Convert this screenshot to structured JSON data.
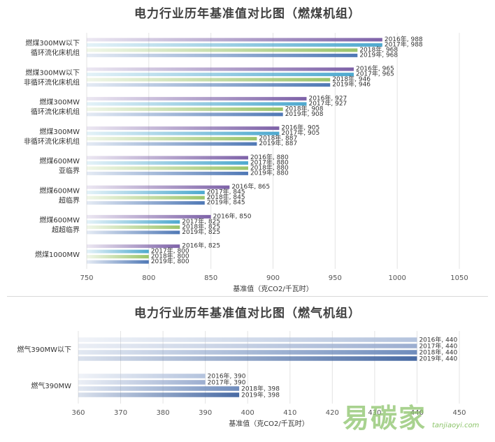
{
  "coal": {
    "title": "电力行业历年基准值对比图（燃煤机组）",
    "chart_data": {
      "type": "bar",
      "orientation": "horizontal",
      "title": "电力行业历年基准值对比图（燃煤机组）",
      "xlabel": "基准值（克CO2/千瓦时）",
      "ylabel": "",
      "xlim": [
        750,
        1050
      ],
      "xticks": [
        750,
        800,
        850,
        900,
        950,
        1000,
        1050
      ],
      "grid": true,
      "categories": [
        [
          "燃煤300MW以下",
          "循环流化床机组"
        ],
        [
          "燃煤300MW以下",
          "非循环流化床机组"
        ],
        [
          "燃煤300MW",
          "循环流化床机组"
        ],
        [
          "燃煤300MW",
          "非循环流化床机组"
        ],
        [
          "燃煤600MW",
          "亚临界"
        ],
        [
          "燃煤600MW",
          "超临界"
        ],
        [
          "燃煤600MW",
          "超超临界"
        ],
        [
          "燃煤1000MW"
        ]
      ],
      "series": [
        {
          "name": "2016年",
          "color": "#7e62a8",
          "values": [
            988,
            965,
            927,
            905,
            880,
            865,
            850,
            825
          ]
        },
        {
          "name": "2017年",
          "color": "#4ea9cf",
          "values": [
            988,
            965,
            927,
            905,
            880,
            845,
            825,
            800
          ]
        },
        {
          "name": "2018年",
          "color": "#9bc46a",
          "values": [
            968,
            946,
            908,
            887,
            880,
            845,
            825,
            800
          ]
        },
        {
          "name": "2019年",
          "color": "#4f78b5",
          "values": [
            968,
            946,
            908,
            887,
            880,
            845,
            825,
            800
          ]
        }
      ]
    }
  },
  "gas": {
    "title": "电力行业历年基准值对比图（燃气机组）",
    "chart_data": {
      "type": "bar",
      "orientation": "horizontal",
      "title": "电力行业历年基准值对比图（燃气机组）",
      "xlabel": "基准值（克CO2/千瓦时）",
      "ylabel": "",
      "xlim": [
        360,
        450
      ],
      "xticks": [
        360,
        370,
        380,
        390,
        400,
        410,
        420,
        430,
        440,
        450
      ],
      "grid": true,
      "categories": [
        [
          "燃气390MW以下"
        ],
        [
          "燃气390MW"
        ]
      ],
      "series": [
        {
          "name": "2016年",
          "color": "#b4c3dd",
          "values": [
            440,
            390
          ]
        },
        {
          "name": "2017年",
          "color": "#9caed0",
          "values": [
            440,
            390
          ]
        },
        {
          "name": "2018年",
          "color": "#6f8cbc",
          "values": [
            440,
            398
          ]
        },
        {
          "name": "2019年",
          "color": "#486aa3",
          "values": [
            440,
            398
          ]
        }
      ]
    }
  },
  "watermark": {
    "text": "易碳家",
    "url": "tanjiaoyi.com"
  }
}
